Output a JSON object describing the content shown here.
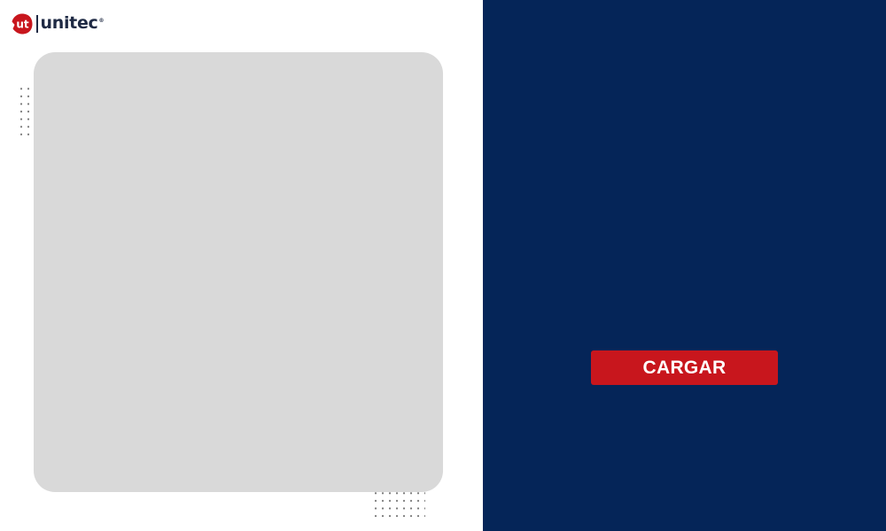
{
  "brand": {
    "mark_text": "ut",
    "name": "unitec",
    "registered": "®",
    "red": "#c8161d",
    "navy": "#1f2a44"
  },
  "left_panel": {
    "background": "#ffffff",
    "placeholder_color": "#d9d9d9"
  },
  "right_panel": {
    "background": "#052558"
  },
  "actions": {
    "load_label": "CARGAR",
    "load_color": "#c8161d"
  }
}
